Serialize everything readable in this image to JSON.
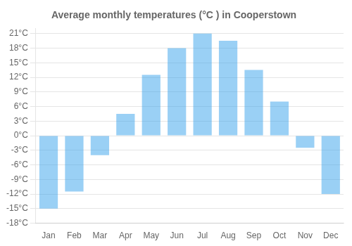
{
  "chart_data": {
    "type": "bar",
    "title": "Average monthly temperatures (°C ) in Cooperstown",
    "categories": [
      "Jan",
      "Feb",
      "Mar",
      "Apr",
      "May",
      "Jun",
      "Jul",
      "Aug",
      "Sep",
      "Oct",
      "Nov",
      "Dec"
    ],
    "values": [
      -15,
      -11.5,
      -4,
      4.5,
      12.5,
      18,
      21,
      19.5,
      13.5,
      7,
      -2.5,
      -12
    ],
    "ylim": [
      -18,
      22
    ],
    "yticks": [
      {
        "value": -18,
        "label": "-18°C"
      },
      {
        "value": -15,
        "label": "-15°C"
      },
      {
        "value": -12,
        "label": "-12°C"
      },
      {
        "value": -9,
        "label": "-9°C"
      },
      {
        "value": -6,
        "label": "-6°C"
      },
      {
        "value": -3,
        "label": "-3°C"
      },
      {
        "value": 0,
        "label": "0°C"
      },
      {
        "value": 3,
        "label": "3°C"
      },
      {
        "value": 6,
        "label": "6°C"
      },
      {
        "value": 9,
        "label": "9°C"
      },
      {
        "value": 12,
        "label": "12°C"
      },
      {
        "value": 15,
        "label": "15°C"
      },
      {
        "value": 18,
        "label": "18°C"
      },
      {
        "value": 21,
        "label": "21°C"
      }
    ],
    "grid": true
  }
}
